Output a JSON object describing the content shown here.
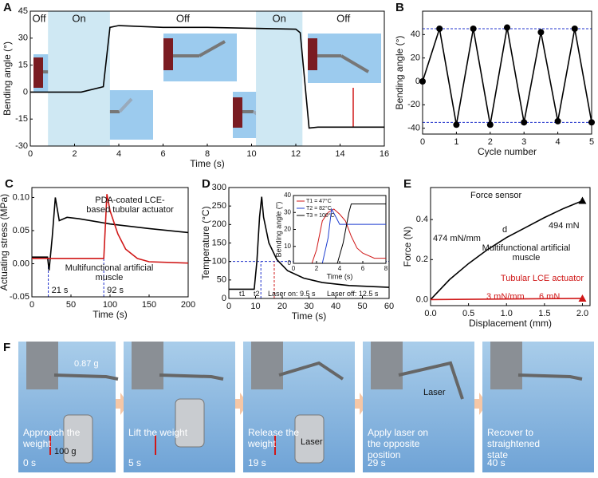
{
  "chart_data": [
    {
      "type": "line",
      "label": "A",
      "xlabel": "Time (s)",
      "ylabel": "Bending angle (°)",
      "xlim": [
        0,
        16
      ],
      "ylim": [
        -30,
        45
      ],
      "xticks": [
        0,
        2,
        4,
        6,
        8,
        10,
        12,
        14,
        16
      ],
      "yticks": [
        -30,
        -15,
        0,
        15,
        30,
        45
      ],
      "region_color": "#cfe8f3",
      "regions": [
        {
          "text": "Off",
          "range": [
            0,
            0.8
          ],
          "shaded": false
        },
        {
          "text": "On",
          "range": [
            0.8,
            3.6
          ],
          "shaded": true
        },
        {
          "text": "Off",
          "range": [
            3.6,
            10.2
          ],
          "shaded": false
        },
        {
          "text": "On",
          "range": [
            10.2,
            12.3
          ],
          "shaded": true
        },
        {
          "text": "Off",
          "range": [
            12.3,
            16
          ],
          "shaded": false
        }
      ],
      "series": [
        {
          "color": "#000000",
          "x": [
            0,
            2.3,
            3.3,
            3.6,
            4,
            6,
            8,
            10,
            12,
            12.2,
            12.6,
            13,
            16
          ],
          "values": [
            0,
            0,
            3,
            36,
            37,
            36,
            36,
            35.5,
            35,
            33,
            -20,
            -19.5,
            -19.5
          ]
        }
      ]
    },
    {
      "type": "line",
      "label": "B",
      "xlabel": "Cycle number",
      "ylabel": "Bending angle (°)",
      "xlim": [
        0,
        5
      ],
      "ylim": [
        -45,
        60
      ],
      "xticks": [
        0,
        1,
        2,
        3,
        4,
        5
      ],
      "yticks": [
        -40,
        -20,
        0,
        20,
        40
      ],
      "guide_color": "#2233cc",
      "hlines": [
        45,
        -35
      ],
      "series": [
        {
          "color": "#000000",
          "markers": true,
          "x": [
            0,
            0.5,
            1,
            1.5,
            2,
            2.5,
            3,
            3.5,
            4,
            4.5,
            5
          ],
          "values": [
            0,
            45,
            -37,
            45,
            -37,
            46,
            -35,
            42,
            -34,
            45,
            -35
          ]
        }
      ]
    },
    {
      "type": "line",
      "label": "C",
      "xlabel": "Time (s)",
      "ylabel": "Actuating stress (MPa)",
      "xlim": [
        0,
        200
      ],
      "ylim": [
        -0.05,
        0.115
      ],
      "xticks": [
        0,
        50,
        100,
        150,
        200
      ],
      "yticks": [
        {
          "value": -0.05,
          "label": "-0.05"
        },
        {
          "value": 0,
          "label": "0.00"
        },
        {
          "value": 0.05,
          "label": "0.05"
        },
        {
          "value": 0.1,
          "label": "0.10"
        }
      ],
      "guide_color": "#2233cc",
      "vlines": [
        {
          "value": 21,
          "label": "21 s"
        },
        {
          "value": 92,
          "label": "92 s"
        }
      ],
      "series": [
        {
          "name": "Multifunctional artificial muscle",
          "color": "#000000",
          "x": [
            0,
            20,
            22,
            26,
            30,
            35,
            45,
            60,
            100,
            150,
            200
          ],
          "values": [
            0.01,
            0.01,
            -0.01,
            0.04,
            0.1,
            0.065,
            0.07,
            0.068,
            0.06,
            0.053,
            0.047
          ]
        },
        {
          "name": "PDA-coated LCE-based tubular actuator",
          "color": "#d01818",
          "x": [
            0,
            92,
            96,
            100,
            110,
            120,
            135,
            150,
            200
          ],
          "values": [
            0.008,
            0.008,
            0.105,
            0.08,
            0.045,
            0.022,
            0.008,
            0.003,
            0.001
          ]
        }
      ]
    },
    {
      "type": "line",
      "label": "D",
      "xlabel": "Time (s)",
      "ylabel": "Temperature (°C)",
      "xlim": [
        0,
        60
      ],
      "ylim": [
        0,
        300
      ],
      "xticks": [
        0,
        10,
        20,
        30,
        40,
        50,
        60
      ],
      "yticks": [
        0,
        50,
        100,
        150,
        200,
        250,
        300
      ],
      "guide_color": "#2233cc",
      "vlines": [
        12,
        17
      ],
      "hlines": [
        100
      ],
      "annotations": [
        "t1",
        "t2",
        "Laser on: 9.5 s",
        "Laser off: 12.5 s"
      ],
      "series": [
        {
          "color": "#000000",
          "x": [
            0,
            9.5,
            10.5,
            11.5,
            12.3,
            13,
            15,
            18,
            22,
            28,
            35,
            45,
            60
          ],
          "values": [
            25,
            25,
            100,
            220,
            275,
            220,
            150,
            105,
            75,
            55,
            43,
            35,
            30
          ]
        }
      ]
    },
    {
      "type": "line",
      "xlabel": "Time (s)",
      "ylabel": "Bending angle (°)",
      "xlim": [
        0,
        8
      ],
      "ylim": [
        0,
        40
      ],
      "xticks": [
        0,
        2,
        4,
        6,
        8
      ],
      "yticks": [
        0,
        10,
        20,
        30,
        40
      ],
      "legend": "upper left",
      "series": [
        {
          "name": "T1 = 47°C",
          "color": "#d01818",
          "x": [
            0,
            1.6,
            2,
            2.5,
            3,
            3.5,
            4,
            4.5,
            5,
            5.5,
            6,
            7,
            8
          ],
          "values": [
            0,
            0,
            8,
            25,
            30,
            32,
            29,
            25,
            16,
            9,
            6,
            3,
            3
          ]
        },
        {
          "name": "T2 = 82°C",
          "color": "#1f3fd0",
          "x": [
            0,
            2.5,
            3,
            3.3,
            3.7,
            4,
            8
          ],
          "values": [
            0,
            0,
            15,
            32,
            27,
            23,
            23
          ]
        },
        {
          "name": "T3 = 100°C",
          "color": "#000000",
          "x": [
            0,
            3.8,
            4.3,
            4.8,
            5,
            8
          ],
          "values": [
            0,
            0,
            12,
            30,
            35,
            35
          ]
        }
      ]
    },
    {
      "type": "line",
      "label": "E",
      "xlabel": "Displacement (mm)",
      "ylabel": "Force (N)",
      "xlim": [
        0,
        2.1
      ],
      "ylim": [
        -0.03,
        0.56
      ],
      "xticks": [
        {
          "value": 0,
          "label": "0.0"
        },
        {
          "value": 0.5,
          "label": "0.5"
        },
        {
          "value": 1,
          "label": "1.0"
        },
        {
          "value": 1.5,
          "label": "1.5"
        },
        {
          "value": 2,
          "label": "2.0"
        }
      ],
      "yticks": [
        {
          "value": 0,
          "label": "0.0"
        },
        {
          "value": 0.2,
          "label": "0.2"
        },
        {
          "value": 0.4,
          "label": "0.4"
        }
      ],
      "annotations": [
        "Force sensor",
        "d",
        "474 mN/mm",
        "3 mN/mm"
      ],
      "series": [
        {
          "name": "Multifunctional artificial muscle",
          "color": "#000000",
          "end_marker": "triangle",
          "end_label": "494 mN",
          "x": [
            0,
            0.25,
            0.5,
            0.75,
            1,
            1.25,
            1.5,
            1.75,
            2
          ],
          "values": [
            0,
            0.1,
            0.18,
            0.25,
            0.31,
            0.36,
            0.41,
            0.455,
            0.494
          ]
        },
        {
          "name": "Tubular LCE actuator",
          "color": "#d01818",
          "end_marker": "triangle",
          "end_label": "6 mN",
          "x": [
            0,
            2
          ],
          "values": [
            0,
            0.006
          ]
        }
      ]
    }
  ],
  "panel_f": {
    "label": "F",
    "frames": [
      {
        "caption": "Approach the weight",
        "time": "0 s",
        "notes": [
          "0.87 g",
          "100 g"
        ]
      },
      {
        "caption": "Lift the weight",
        "time": "5 s"
      },
      {
        "caption": "Release the weight",
        "time": "19 s",
        "notes": [
          "Laser"
        ]
      },
      {
        "caption": "Apply laser on the opposite position",
        "time": "29 s",
        "notes": [
          "Laser"
        ]
      },
      {
        "caption": "Recover to straightened state",
        "time": "40 s"
      }
    ]
  }
}
